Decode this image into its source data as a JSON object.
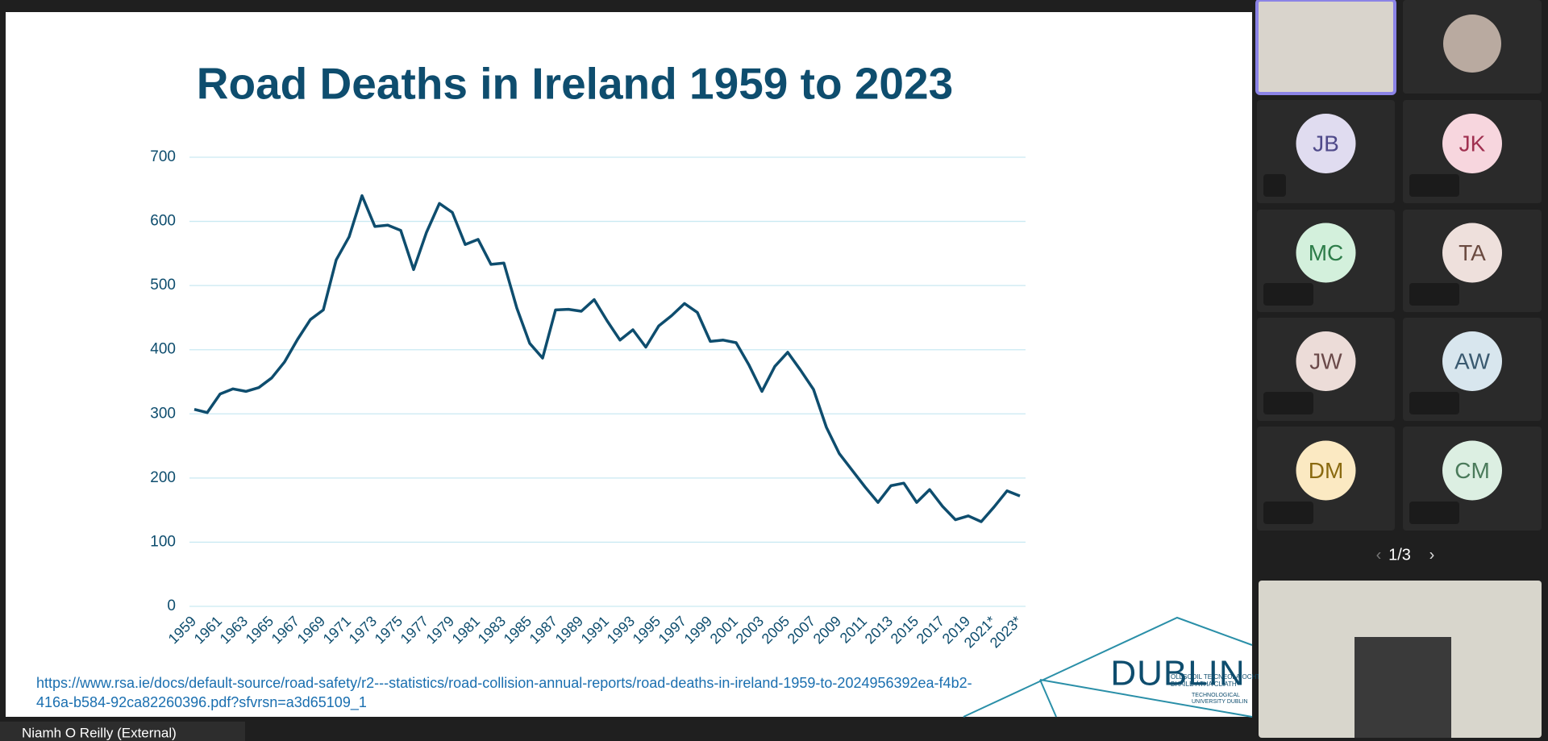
{
  "chart_data": {
    "type": "line",
    "title": "Road Deaths in Ireland 1959 to 2023",
    "categories": [
      "1959",
      null,
      "1961",
      null,
      "1963",
      null,
      "1965",
      null,
      "1967",
      null,
      "1969",
      null,
      "1971",
      null,
      "1973",
      null,
      "1975",
      null,
      "1977",
      null,
      "1979",
      null,
      "1981",
      null,
      "1983",
      null,
      "1985",
      null,
      "1987",
      null,
      "1989",
      null,
      "1991",
      null,
      "1993",
      null,
      "1995",
      null,
      "1997",
      null,
      "1999",
      null,
      "2001",
      null,
      "2003",
      null,
      "2005",
      null,
      "2007",
      null,
      "2009",
      null,
      "2011",
      null,
      "2013",
      null,
      "2015",
      null,
      "2017",
      null,
      "2019",
      null,
      "2021*",
      null,
      "2023*"
    ],
    "series": [
      {
        "name": "Road deaths",
        "color": "#0e4d6e",
        "values": [
          307,
          302,
          331,
          339,
          335,
          341,
          356,
          381,
          416,
          447,
          462,
          540,
          576,
          640,
          592,
          594,
          586,
          525,
          583,
          628,
          614,
          564,
          572,
          533,
          535,
          465,
          410,
          387,
          462,
          463,
          460,
          478,
          445,
          415,
          431,
          404,
          437,
          453,
          472,
          458,
          413,
          415,
          411,
          376,
          335,
          374,
          396,
          368,
          338,
          279,
          238,
          212,
          186,
          162,
          188,
          192,
          162,
          182,
          156,
          135,
          141,
          132,
          155,
          180,
          172
        ]
      }
    ],
    "ylim": [
      0,
      700
    ],
    "yticks": [
      0,
      100,
      200,
      300,
      400,
      500,
      600,
      700
    ],
    "grid": true
  },
  "ui": {
    "participants": [
      "JB",
      "JK",
      "MC",
      "TA",
      "JW",
      "AW",
      "DM",
      "CM"
    ],
    "pager": "1/3",
    "presenter": "Niamh O Reilly (External)",
    "source_url": [
      "https://www.rsa.ie/docs/default-source/road-safety/r2---statistics/road-collision-annual-reports/road-deaths-in-ireland-1959-to-2024956392ea-f4b2-",
      "416a-b584-92ca82260396.pdf?sfvrsn=a3d65109_1"
    ],
    "logo": {
      "irish": [
        "OLLSCOIL TEICNEOLAÍOCHTA",
        "BHAILE ÁTHA CLIATH"
      ],
      "name": "DUBLIN",
      "english": [
        "TECHNOLOGICAL",
        "UNIVERSITY DUBLIN"
      ]
    }
  }
}
